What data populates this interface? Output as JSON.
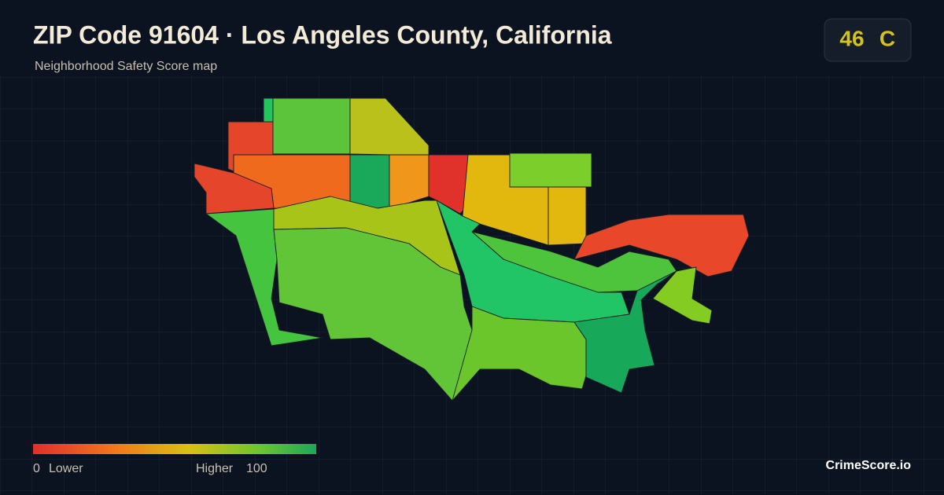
{
  "header": {
    "title": "ZIP Code 91604 · Los Angeles County, California",
    "subtitle": "Neighborhood Safety Score map"
  },
  "badge": {
    "score": "46",
    "grade": "C"
  },
  "legend": {
    "min": "0",
    "min_label": "Lower",
    "max_label": "Higher",
    "max": "100"
  },
  "footer": {
    "brand": "CrimeScore.io"
  }
}
